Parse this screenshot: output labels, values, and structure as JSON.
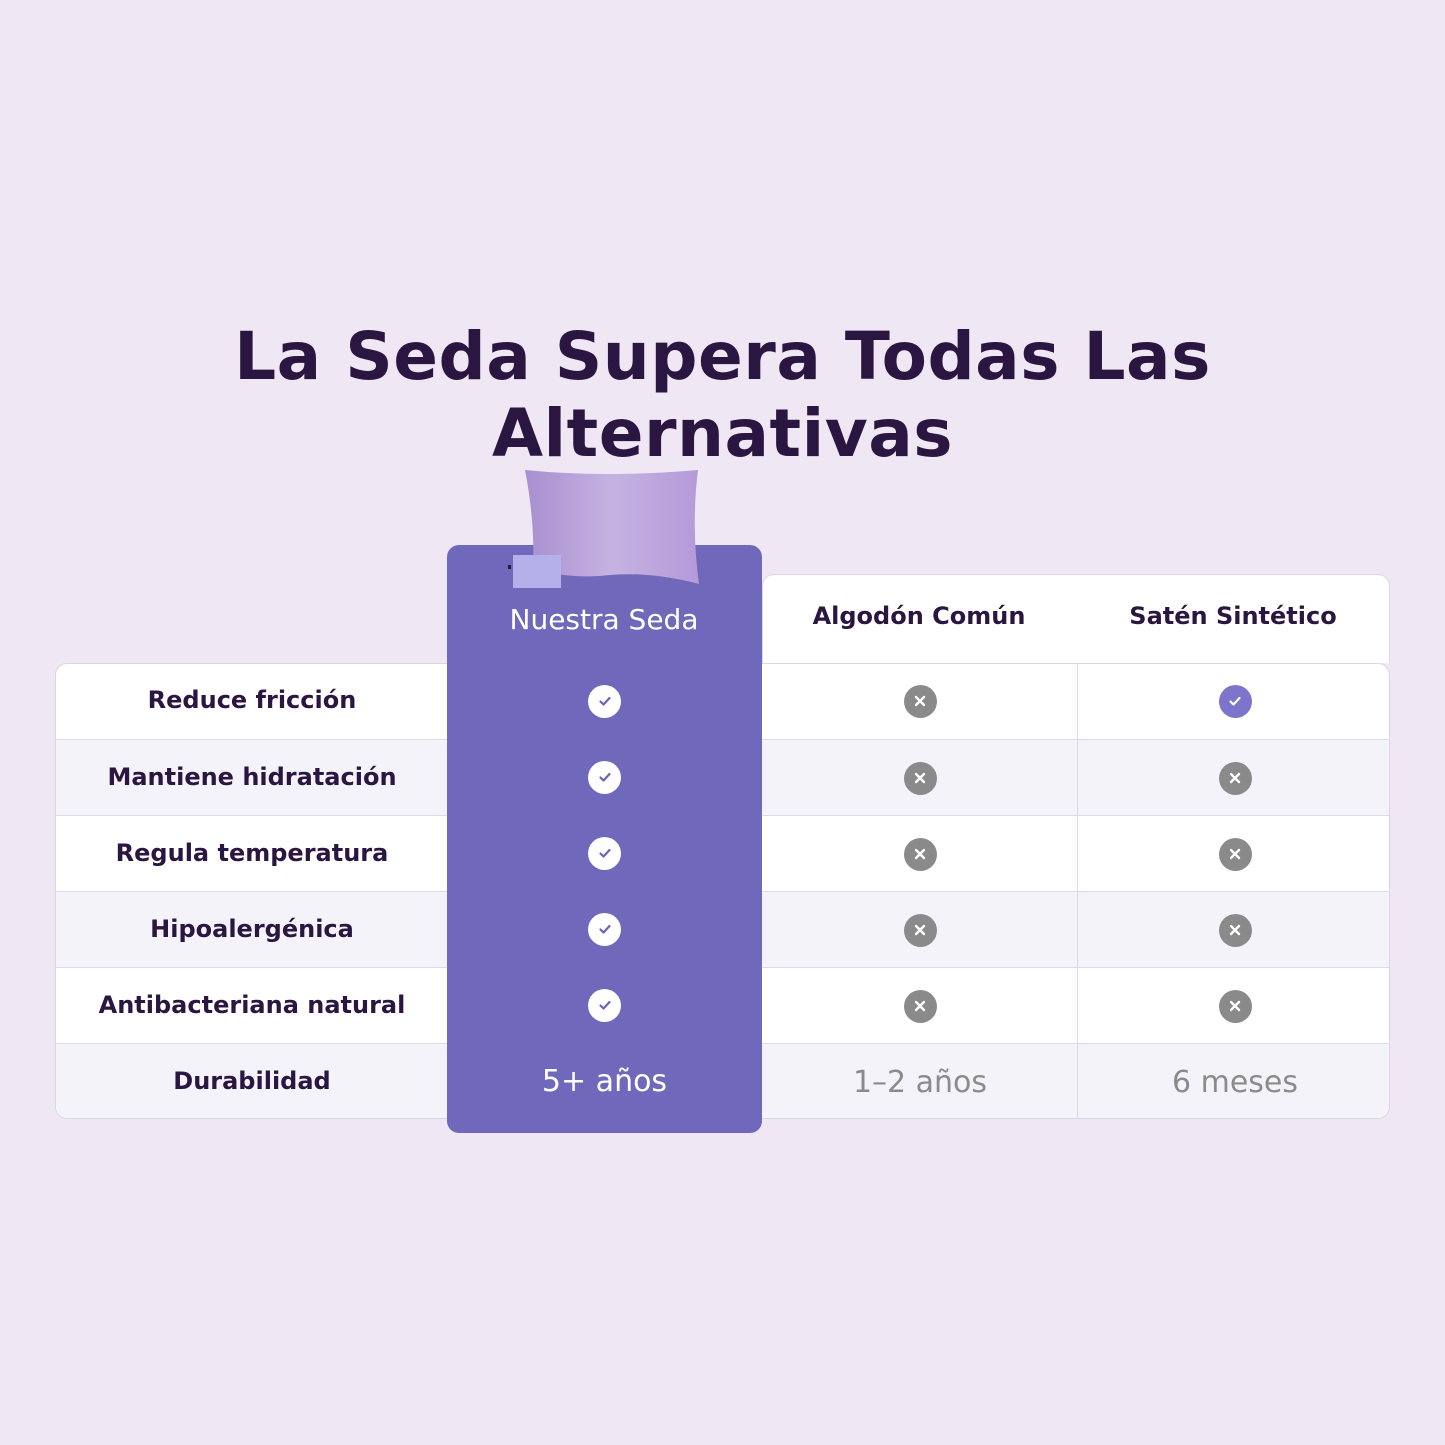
{
  "title": "La Seda Supera Todas Las Alternativas",
  "columns": [
    "Nuestra Seda",
    "Algodón Común",
    "Satén Sintético"
  ],
  "rows": [
    {
      "feature": "Reduce fricción",
      "values": [
        "check",
        "cross",
        "check"
      ]
    },
    {
      "feature": "Mantiene hidratación",
      "values": [
        "check",
        "cross",
        "cross"
      ]
    },
    {
      "feature": "Regula temperatura",
      "values": [
        "check",
        "cross",
        "cross"
      ]
    },
    {
      "feature": "Hipoalergénica",
      "values": [
        "check",
        "cross",
        "cross"
      ]
    },
    {
      "feature": "Antibacteriana natural",
      "values": [
        "check",
        "cross",
        "cross"
      ]
    }
  ],
  "durability": {
    "feature": "Durabilidad",
    "values": [
      "5+ años",
      "1–2 años",
      "6 meses"
    ]
  },
  "colors": {
    "background": "#efe7f4",
    "highlight": "#7069bb",
    "title": "#2a1640",
    "cross": "#8a8a8a",
    "check_alt": "#7d74cc"
  }
}
